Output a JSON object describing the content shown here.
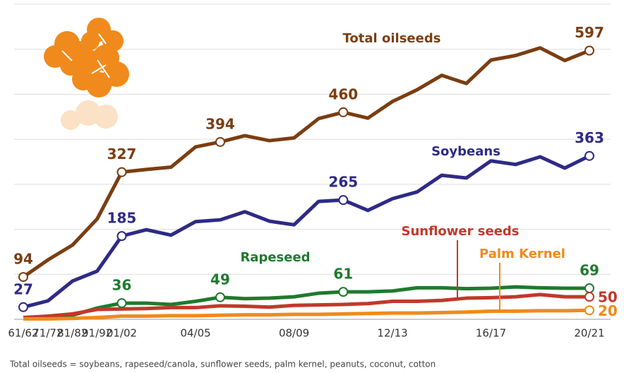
{
  "chart_data": {
    "type": "line",
    "categories": [
      "61/62",
      "71/72",
      "81/82",
      "91/92",
      "01/02",
      null,
      null,
      "04/05",
      null,
      null,
      null,
      "08/09",
      null,
      null,
      null,
      "12/13",
      null,
      null,
      null,
      "16/17",
      null,
      null,
      null,
      "20/21"
    ],
    "series": [
      {
        "name": "Total oilseeds",
        "color": "#7a3e12",
        "marked_points": [
          0,
          4,
          8,
          13,
          23
        ],
        "values": [
          94,
          132,
          165,
          223,
          327,
          333,
          338,
          383,
          394,
          408,
          397,
          403,
          446,
          460,
          447,
          484,
          510,
          542,
          524,
          576,
          586,
          603,
          575,
          597
        ]
      },
      {
        "name": "Soybeans",
        "color": "#2e2a86",
        "marked_points": [
          0,
          4,
          13,
          23
        ],
        "values": [
          27,
          41,
          85,
          107,
          185,
          199,
          187,
          217,
          221,
          239,
          218,
          210,
          262,
          265,
          242,
          268,
          283,
          320,
          314,
          352,
          344,
          361,
          336,
          363
        ]
      },
      {
        "name": "Rapeseed",
        "color": "#1f7a2e",
        "marked_points": [
          4,
          8,
          13,
          23
        ],
        "values": [
          4,
          6,
          9,
          25,
          36,
          36,
          33,
          40,
          49,
          46,
          47,
          50,
          58,
          61,
          61,
          63,
          70,
          70,
          68,
          69,
          72,
          70,
          69,
          69
        ]
      },
      {
        "name": "Sunflower seeds",
        "color": "#c0392b",
        "marked_points": [
          23
        ],
        "values": [
          4,
          7,
          12,
          22,
          23,
          24,
          26,
          26,
          30,
          29,
          27,
          31,
          32,
          33,
          35,
          40,
          40,
          42,
          47,
          48,
          50,
          55,
          50,
          50
        ]
      },
      {
        "name": "Palm Kernel",
        "color": "#f08a1c",
        "marked_points": [
          23
        ],
        "values": [
          1,
          1,
          2,
          4,
          7,
          7,
          8,
          8,
          9,
          10,
          10,
          11,
          11,
          12,
          13,
          14,
          14,
          15,
          16,
          18,
          18,
          19,
          19,
          20
        ]
      }
    ],
    "ylim": [
      0,
      700
    ],
    "yticks": [
      100,
      200,
      300,
      400,
      500,
      600,
      700
    ],
    "ytick_labels": false,
    "grid": true,
    "footnote": "Total oilseeds = soybeans, rapeseed/canola, sunflower seeds, palm kernel, peanuts, coconut, cotton"
  }
}
